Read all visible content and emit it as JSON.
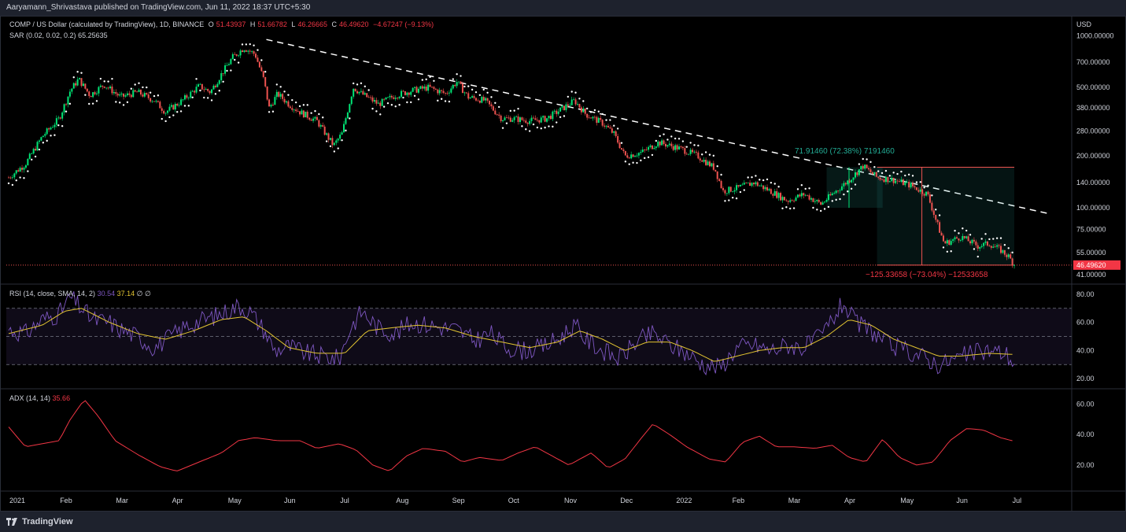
{
  "header": {
    "published": "Aaryamann_Shrivastava published on TradingView.com, Jun 11, 2022 18:37 UTC+5:30"
  },
  "main_legend": {
    "symbol": "COMP / US Dollar (calculated by TradingView), 1D, BINANCE",
    "o_label": "O",
    "o_value": "51.43937",
    "h_label": "H",
    "h_value": "51.66782",
    "l_label": "L",
    "l_value": "46.26665",
    "c_label": "C",
    "c_value": "46.49620",
    "change": "−4.67247 (−9.13%)",
    "sar_label": "SAR (0.02, 0.02, 0.2)",
    "sar_value": "65.25635"
  },
  "rsi_legend": {
    "label": "RSI (14, close, SMA, 14, 2)",
    "v1": "30.54",
    "v2": "37.14",
    "v3": "∅",
    "v4": "∅"
  },
  "adx_legend": {
    "label": "ADX (14, 14)",
    "value": "35.66"
  },
  "price_axis": {
    "currency": "USD",
    "ticks": [
      "1000.00000",
      "700.00000",
      "500.00000",
      "380.00000",
      "280.00000",
      "200.00000",
      "140.00000",
      "100.00000",
      "75.00000",
      "55.00000",
      "41.00000"
    ],
    "tick_values": [
      1000,
      700,
      500,
      380,
      280,
      200,
      140,
      100,
      75,
      55,
      41
    ],
    "last_price_label": "46.49620"
  },
  "rsi_axis": {
    "ticks": [
      "80.00",
      "60.00",
      "40.00",
      "20.00"
    ],
    "tick_values": [
      80,
      60,
      40,
      20
    ]
  },
  "adx_axis": {
    "ticks": [
      "60.00",
      "40.00",
      "20.00"
    ],
    "tick_values": [
      60,
      40,
      20
    ]
  },
  "time_axis": [
    "2021",
    "Feb",
    "Mar",
    "Apr",
    "May",
    "Jun",
    "Jul",
    "Aug",
    "Sep",
    "Oct",
    "Nov",
    "Dec",
    "2022",
    "Feb",
    "Mar",
    "Apr",
    "May",
    "Jun",
    "Jul"
  ],
  "measure_up_label": "71.91460 (72.38%) 7191460",
  "measure_down_label": "−125.33658 (−73.04%) −12533658",
  "footer": {
    "brand": "TradingView"
  },
  "colors": {
    "up": "#26a69a",
    "up_bright": "#00e676",
    "down": "#ef5350",
    "sar": "#ffffff",
    "rsi": "#7e57c2",
    "rsi_sma": "#e2c431",
    "adx": "#f23645",
    "background": "#000000"
  },
  "chart_data": [
    {
      "type": "candlestick",
      "title": "COMP / US Dollar (calculated by TradingView), 1D, BINANCE",
      "scale": "log",
      "ylim": [
        38,
        1200
      ],
      "x_unit": "month index from Jan 2021",
      "close_points": [
        {
          "x": 0.0,
          "y": 150
        },
        {
          "x": 0.3,
          "y": 180
        },
        {
          "x": 0.6,
          "y": 260
        },
        {
          "x": 0.9,
          "y": 330
        },
        {
          "x": 1.1,
          "y": 480
        },
        {
          "x": 1.25,
          "y": 560
        },
        {
          "x": 1.45,
          "y": 450
        },
        {
          "x": 1.7,
          "y": 520
        },
        {
          "x": 2.0,
          "y": 440
        },
        {
          "x": 2.3,
          "y": 470
        },
        {
          "x": 2.6,
          "y": 420
        },
        {
          "x": 2.8,
          "y": 360
        },
        {
          "x": 3.1,
          "y": 420
        },
        {
          "x": 3.4,
          "y": 510
        },
        {
          "x": 3.6,
          "y": 470
        },
        {
          "x": 3.8,
          "y": 600
        },
        {
          "x": 4.0,
          "y": 750
        },
        {
          "x": 4.2,
          "y": 850
        },
        {
          "x": 4.4,
          "y": 780
        },
        {
          "x": 4.55,
          "y": 560
        },
        {
          "x": 4.65,
          "y": 380
        },
        {
          "x": 4.8,
          "y": 460
        },
        {
          "x": 5.0,
          "y": 400
        },
        {
          "x": 5.2,
          "y": 360
        },
        {
          "x": 5.5,
          "y": 320
        },
        {
          "x": 5.8,
          "y": 230
        },
        {
          "x": 5.95,
          "y": 270
        },
        {
          "x": 6.15,
          "y": 500
        },
        {
          "x": 6.3,
          "y": 460
        },
        {
          "x": 6.6,
          "y": 400
        },
        {
          "x": 6.9,
          "y": 450
        },
        {
          "x": 7.2,
          "y": 480
        },
        {
          "x": 7.5,
          "y": 500
        },
        {
          "x": 7.8,
          "y": 460
        },
        {
          "x": 8.0,
          "y": 540
        },
        {
          "x": 8.2,
          "y": 440
        },
        {
          "x": 8.5,
          "y": 420
        },
        {
          "x": 8.8,
          "y": 330
        },
        {
          "x": 9.0,
          "y": 330
        },
        {
          "x": 9.3,
          "y": 320
        },
        {
          "x": 9.6,
          "y": 330
        },
        {
          "x": 9.9,
          "y": 380
        },
        {
          "x": 10.1,
          "y": 420
        },
        {
          "x": 10.3,
          "y": 350
        },
        {
          "x": 10.6,
          "y": 310
        },
        {
          "x": 10.8,
          "y": 270
        },
        {
          "x": 11.0,
          "y": 200
        },
        {
          "x": 11.3,
          "y": 210
        },
        {
          "x": 11.6,
          "y": 240
        },
        {
          "x": 11.8,
          "y": 230
        },
        {
          "x": 12.0,
          "y": 220
        },
        {
          "x": 12.3,
          "y": 200
        },
        {
          "x": 12.6,
          "y": 170
        },
        {
          "x": 12.75,
          "y": 125
        },
        {
          "x": 13.0,
          "y": 130
        },
        {
          "x": 13.3,
          "y": 140
        },
        {
          "x": 13.6,
          "y": 125
        },
        {
          "x": 13.9,
          "y": 110
        },
        {
          "x": 14.2,
          "y": 120
        },
        {
          "x": 14.5,
          "y": 105
        },
        {
          "x": 14.7,
          "y": 120
        },
        {
          "x": 15.0,
          "y": 145
        },
        {
          "x": 15.25,
          "y": 175
        },
        {
          "x": 15.5,
          "y": 150
        },
        {
          "x": 15.8,
          "y": 145
        },
        {
          "x": 16.1,
          "y": 135
        },
        {
          "x": 16.4,
          "y": 120
        },
        {
          "x": 16.55,
          "y": 85
        },
        {
          "x": 16.7,
          "y": 62
        },
        {
          "x": 17.0,
          "y": 68
        },
        {
          "x": 17.3,
          "y": 60
        },
        {
          "x": 17.5,
          "y": 62
        },
        {
          "x": 17.7,
          "y": 57
        },
        {
          "x": 17.85,
          "y": 52
        },
        {
          "x": 17.95,
          "y": 46.5
        }
      ],
      "trendline": [
        {
          "x": 4.6,
          "y": 950
        },
        {
          "x": 18.6,
          "y": 92
        }
      ],
      "measure_up": {
        "from": 100,
        "to": 172
      },
      "measure_down": {
        "from": 172,
        "to": 46.5
      }
    },
    {
      "type": "line",
      "title": "RSI (14, close, SMA, 14, 2)",
      "ylim": [
        15,
        85
      ],
      "bands": [
        30,
        50,
        70
      ],
      "series": [
        {
          "values_x_unit": "month index",
          "points": [
            [
              0,
              55
            ],
            [
              0.3,
              52
            ],
            [
              0.6,
              62
            ],
            [
              0.9,
              66
            ],
            [
              1.1,
              78
            ],
            [
              1.3,
              70
            ],
            [
              1.5,
              62
            ],
            [
              1.8,
              60
            ],
            [
              2.0,
              55
            ],
            [
              2.3,
              50
            ],
            [
              2.6,
              42
            ],
            [
              2.9,
              50
            ],
            [
              3.2,
              58
            ],
            [
              3.5,
              62
            ],
            [
              3.8,
              66
            ],
            [
              4.1,
              72
            ],
            [
              4.3,
              68
            ],
            [
              4.55,
              55
            ],
            [
              4.75,
              40
            ],
            [
              5.0,
              43
            ],
            [
              5.3,
              38
            ],
            [
              5.6,
              36
            ],
            [
              5.9,
              34
            ],
            [
              6.1,
              56
            ],
            [
              6.3,
              68
            ],
            [
              6.6,
              56
            ],
            [
              6.9,
              52
            ],
            [
              7.2,
              60
            ],
            [
              7.5,
              58
            ],
            [
              7.8,
              56
            ],
            [
              8.0,
              55
            ],
            [
              8.3,
              47
            ],
            [
              8.6,
              52
            ],
            [
              8.9,
              42
            ],
            [
              9.2,
              40
            ],
            [
              9.5,
              42
            ],
            [
              9.8,
              48
            ],
            [
              10.1,
              58
            ],
            [
              10.3,
              48
            ],
            [
              10.6,
              40
            ],
            [
              10.9,
              34
            ],
            [
              11.2,
              46
            ],
            [
              11.5,
              52
            ],
            [
              11.8,
              44
            ],
            [
              12.1,
              38
            ],
            [
              12.4,
              30
            ],
            [
              12.7,
              28
            ],
            [
              13.0,
              42
            ],
            [
              13.3,
              44
            ],
            [
              13.6,
              40
            ],
            [
              13.9,
              44
            ],
            [
              14.2,
              42
            ],
            [
              14.5,
              50
            ],
            [
              14.7,
              62
            ],
            [
              14.9,
              74
            ],
            [
              15.1,
              60
            ],
            [
              15.4,
              54
            ],
            [
              15.7,
              44
            ],
            [
              16.0,
              40
            ],
            [
              16.3,
              36
            ],
            [
              16.6,
              30
            ],
            [
              16.9,
              34
            ],
            [
              17.2,
              38
            ],
            [
              17.5,
              40
            ],
            [
              17.8,
              38
            ],
            [
              17.95,
              30.54
            ]
          ]
        },
        {
          "name_hidden": true,
          "points": [
            [
              0,
              52
            ],
            [
              0.6,
              58
            ],
            [
              1.0,
              68
            ],
            [
              1.3,
              70
            ],
            [
              1.8,
              60
            ],
            [
              2.3,
              52
            ],
            [
              2.8,
              48
            ],
            [
              3.3,
              54
            ],
            [
              3.8,
              62
            ],
            [
              4.2,
              64
            ],
            [
              4.6,
              54
            ],
            [
              5.0,
              42
            ],
            [
              5.5,
              38
            ],
            [
              6.0,
              38
            ],
            [
              6.4,
              54
            ],
            [
              6.8,
              56
            ],
            [
              7.3,
              58
            ],
            [
              7.8,
              56
            ],
            [
              8.3,
              50
            ],
            [
              8.8,
              46
            ],
            [
              9.3,
              42
            ],
            [
              9.8,
              46
            ],
            [
              10.2,
              54
            ],
            [
              10.6,
              48
            ],
            [
              11.0,
              40
            ],
            [
              11.4,
              46
            ],
            [
              11.8,
              46
            ],
            [
              12.2,
              40
            ],
            [
              12.6,
              32
            ],
            [
              13.0,
              36
            ],
            [
              13.4,
              40
            ],
            [
              13.8,
              42
            ],
            [
              14.2,
              42
            ],
            [
              14.6,
              50
            ],
            [
              15.0,
              62
            ],
            [
              15.4,
              58
            ],
            [
              15.8,
              48
            ],
            [
              16.2,
              42
            ],
            [
              16.6,
              36
            ],
            [
              17.0,
              36
            ],
            [
              17.5,
              38
            ],
            [
              17.95,
              37.14
            ]
          ]
        }
      ]
    },
    {
      "type": "line",
      "title": "ADX (14, 14)",
      "ylim": [
        5,
        68
      ],
      "series": [
        {
          "points": [
            [
              0,
              45
            ],
            [
              0.3,
              32
            ],
            [
              0.6,
              34
            ],
            [
              0.9,
              36
            ],
            [
              1.1,
              50
            ],
            [
              1.35,
              63
            ],
            [
              1.6,
              52
            ],
            [
              1.9,
              36
            ],
            [
              2.3,
              27
            ],
            [
              2.7,
              19
            ],
            [
              3.0,
              16
            ],
            [
              3.4,
              22
            ],
            [
              3.8,
              28
            ],
            [
              4.1,
              36
            ],
            [
              4.4,
              38
            ],
            [
              4.8,
              36
            ],
            [
              5.2,
              36
            ],
            [
              5.5,
              31
            ],
            [
              5.9,
              34
            ],
            [
              6.2,
              30
            ],
            [
              6.5,
              20
            ],
            [
              6.8,
              16
            ],
            [
              7.1,
              26
            ],
            [
              7.4,
              31
            ],
            [
              7.8,
              29
            ],
            [
              8.1,
              22
            ],
            [
              8.4,
              25
            ],
            [
              8.8,
              23
            ],
            [
              9.1,
              28
            ],
            [
              9.4,
              32
            ],
            [
              9.7,
              26
            ],
            [
              10.0,
              20
            ],
            [
              10.4,
              28
            ],
            [
              10.7,
              18
            ],
            [
              11.0,
              24
            ],
            [
              11.3,
              38
            ],
            [
              11.5,
              47
            ],
            [
              11.8,
              40
            ],
            [
              12.1,
              32
            ],
            [
              12.5,
              24
            ],
            [
              12.8,
              22
            ],
            [
              13.1,
              35
            ],
            [
              13.4,
              39
            ],
            [
              13.7,
              32
            ],
            [
              14.0,
              32
            ],
            [
              14.4,
              31
            ],
            [
              14.7,
              33
            ],
            [
              15.0,
              25
            ],
            [
              15.3,
              22
            ],
            [
              15.6,
              37
            ],
            [
              15.9,
              25
            ],
            [
              16.2,
              20
            ],
            [
              16.5,
              22
            ],
            [
              16.8,
              36
            ],
            [
              17.1,
              44
            ],
            [
              17.4,
              43
            ],
            [
              17.7,
              38
            ],
            [
              17.95,
              35.66
            ]
          ]
        }
      ]
    }
  ]
}
